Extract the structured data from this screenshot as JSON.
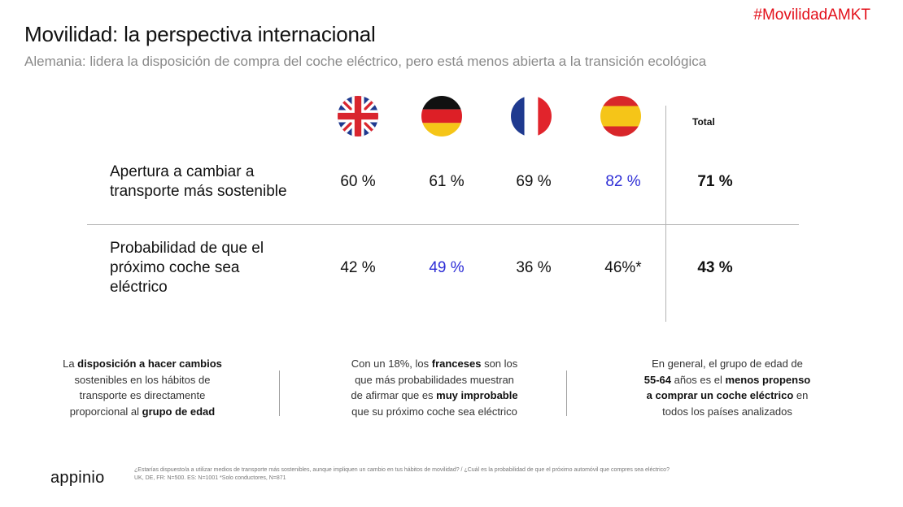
{
  "hashtag": "#MovilidadAMKT",
  "title": "Movilidad: la perspectiva internacional",
  "subtitle": "Alemania: lidera la disposición de compra del coche eléctrico, pero está menos abierta a la transición ecológica",
  "columns": {
    "flags": [
      "uk-flag-icon",
      "germany-flag-icon",
      "france-flag-icon",
      "spain-flag-icon"
    ],
    "total_label": "Total"
  },
  "rows": [
    {
      "label_lines": [
        "Apertura a cambiar a",
        "transporte más sostenible"
      ],
      "values": [
        "60 %",
        "61 %",
        "69 %",
        "82 %"
      ],
      "total": "71 %"
    },
    {
      "label_lines": [
        "Probabilidad de que el",
        "próximo coche sea",
        "eléctrico"
      ],
      "values": [
        "42 %",
        "49 %",
        "36 %",
        "46%*"
      ],
      "total": "43 %"
    }
  ],
  "colors": {
    "highlight": "#2d2dd6",
    "hashtag": "#e3111b"
  },
  "notes": [
    {
      "l1a": "La ",
      "l1b": "disposición a hacer cambios",
      "l2": "sostenibles en los hábitos de",
      "l3": "transporte es directamente",
      "l4a": "proporcional al ",
      "l4b": "grupo de edad"
    },
    {
      "l1a": "Con un 18%, los ",
      "l1b": "franceses",
      "l1c": " son los",
      "l2": "que más probabilidades muestran",
      "l3a": "de afirmar que es ",
      "l3b": "muy improbable",
      "l4": "que su próximo coche sea eléctrico"
    },
    {
      "l1": "En general, el grupo de edad de",
      "l2a": "55-64",
      "l2b": " años es el ",
      "l2c": "menos propenso",
      "l3a": "a comprar un coche eléctrico",
      "l3b": " en",
      "l4": "todos los países analizados"
    }
  ],
  "logo": "appinio",
  "footnote": {
    "line1": "¿Estarías dispuesto/a a utilizar medios de transporte más sostenibles, aunque impliquen un cambio en tus hábitos de movilidad? / ¿Cuál es la probabilidad de que el próximo automóvil que compres sea eléctrico?",
    "line2": "UK, DE, FR: N=500. ES: N=1001 *Solo conductores, N=871"
  }
}
